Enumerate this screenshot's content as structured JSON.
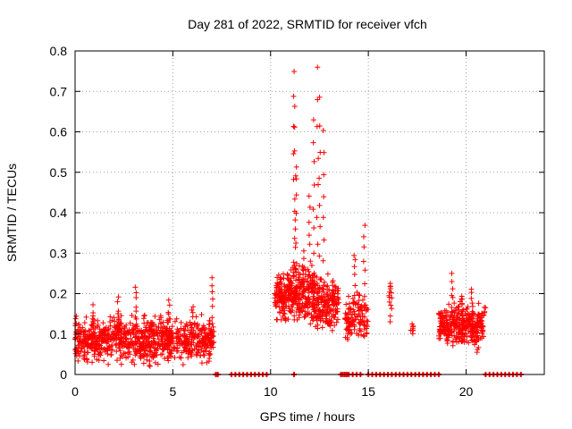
{
  "chart_data": {
    "type": "scatter",
    "title": "Day 281 of 2022, SRMTID for receiver vfch",
    "xlabel": "GPS time / hours",
    "ylabel": "SRMTID / TECUs",
    "xlim": [
      0,
      24
    ],
    "ylim": [
      0,
      0.8
    ],
    "x_ticks": [
      0,
      5,
      10,
      15,
      20
    ],
    "y_ticks": [
      0,
      0.1,
      0.2,
      0.3,
      0.4,
      0.5,
      0.6,
      0.7,
      0.8
    ],
    "grid": true,
    "marker": "+",
    "colors": {
      "series": "#ff0000",
      "grid": "#a0a0a0",
      "axis": "#000000"
    },
    "segments": [
      {
        "x_start": 0.0,
        "x_end": 7.1,
        "level": 0.085,
        "spread": 0.05,
        "peaks": [
          [
            0.9,
            0.17
          ],
          [
            2.2,
            0.19
          ],
          [
            3.1,
            0.22
          ],
          [
            4.8,
            0.18
          ],
          [
            6.0,
            0.17
          ],
          [
            7.0,
            0.24
          ]
        ],
        "count": 900
      },
      {
        "x_start": 10.2,
        "x_end": 11.0,
        "level": 0.19,
        "spread": 0.05,
        "peaks": [
          [
            10.5,
            0.24
          ],
          [
            10.9,
            0.25
          ]
        ],
        "count": 110
      },
      {
        "x_start": 11.0,
        "x_end": 11.4,
        "level": 0.2,
        "spread": 0.06,
        "peaks": [
          [
            11.2,
            0.75
          ],
          [
            11.25,
            0.67
          ],
          [
            11.3,
            0.52
          ]
        ],
        "count": 70
      },
      {
        "x_start": 11.4,
        "x_end": 12.3,
        "level": 0.19,
        "spread": 0.07,
        "peaks": [
          [
            11.7,
            0.3
          ],
          [
            12.0,
            0.44
          ],
          [
            12.2,
            0.63
          ]
        ],
        "count": 150
      },
      {
        "x_start": 12.3,
        "x_end": 13.5,
        "level": 0.17,
        "spread": 0.06,
        "peaks": [
          [
            12.4,
            0.76
          ],
          [
            12.5,
            0.68
          ],
          [
            12.7,
            0.6
          ],
          [
            13.2,
            0.23
          ]
        ],
        "count": 170
      },
      {
        "x_start": 13.8,
        "x_end": 15.0,
        "level": 0.14,
        "spread": 0.05,
        "peaks": [
          [
            14.3,
            0.3
          ],
          [
            14.8,
            0.37
          ]
        ],
        "count": 120
      },
      {
        "x_start": 16.0,
        "x_end": 16.2,
        "level": 0.17,
        "spread": 0.05,
        "peaks": [
          [
            16.1,
            0.23
          ]
        ],
        "count": 6
      },
      {
        "x_start": 17.1,
        "x_end": 17.3,
        "level": 0.12,
        "spread": 0.02,
        "peaks": [],
        "count": 8
      },
      {
        "x_start": 18.6,
        "x_end": 20.9,
        "level": 0.12,
        "spread": 0.05,
        "peaks": [
          [
            19.3,
            0.25
          ],
          [
            19.8,
            0.2
          ],
          [
            20.3,
            0.21
          ]
        ],
        "count": 320
      },
      {
        "x_start": 20.9,
        "x_end": 21.0,
        "level": 0.16,
        "spread": 0.02,
        "peaks": [],
        "count": 6
      }
    ],
    "zero_markers_x": [
      7.2,
      7.3,
      8.0,
      8.2,
      8.4,
      8.6,
      8.8,
      9.0,
      9.2,
      9.4,
      9.6,
      9.8,
      11.2,
      13.6,
      13.7,
      13.8,
      13.9,
      14.0,
      14.2,
      14.4,
      14.6,
      15.0,
      15.2,
      15.4,
      15.6,
      15.8,
      16.0,
      16.2,
      16.4,
      16.6,
      16.8,
      17.0,
      17.2,
      17.4,
      17.6,
      17.8,
      18.0,
      18.2,
      18.4,
      18.6,
      21.0,
      21.2,
      21.4,
      21.6,
      21.8,
      22.0,
      22.2,
      22.4,
      22.6,
      22.8
    ]
  }
}
